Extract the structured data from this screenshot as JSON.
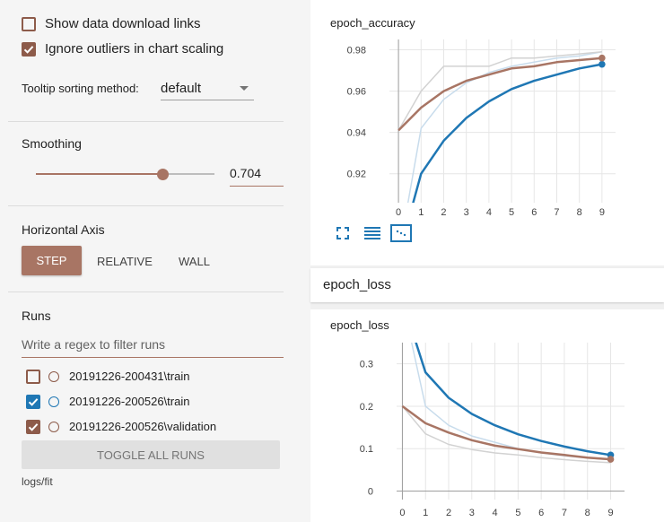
{
  "sidebar": {
    "show_download_links": {
      "label": "Show data download links",
      "checked": false
    },
    "ignore_outliers": {
      "label": "Ignore outliers in chart scaling",
      "checked": true
    },
    "tooltip": {
      "label": "Tooltip sorting method:",
      "value": "default"
    },
    "smoothing": {
      "label": "Smoothing",
      "value": "0.704",
      "level": 0.704
    },
    "horizontal_axis": {
      "label": "Horizontal Axis",
      "options": [
        "STEP",
        "RELATIVE",
        "WALL"
      ],
      "selected": "STEP"
    },
    "runs": {
      "label": "Runs",
      "filter_placeholder": "Write a regex to filter runs",
      "items": [
        {
          "name": "20191226-200431\\train",
          "checked": false,
          "color": "#8d5b4a"
        },
        {
          "name": "20191226-200526\\train",
          "checked": true,
          "color": "#1f77b4"
        },
        {
          "name": "20191226-200526\\validation",
          "checked": true,
          "color": "#8d5b4a"
        }
      ],
      "toggle_label": "TOGGLE ALL RUNS",
      "log_dir": "logs/fit"
    }
  },
  "colors": {
    "accent": "#a87564",
    "train_run": "#1f77b4",
    "validation_run": "#a87564",
    "raw_series": "#c8c8c8"
  },
  "icons": [
    "fullscreen-icon",
    "toggle-log-scale-icon",
    "fit-domain-icon"
  ],
  "main": {
    "accuracy_card_title": "epoch_accuracy",
    "loss_group_header": "epoch_loss",
    "loss_card_title": "epoch_loss"
  },
  "chart_data": [
    {
      "type": "line",
      "title": "epoch_accuracy",
      "x": [
        0,
        1,
        2,
        3,
        4,
        5,
        6,
        7,
        8,
        9
      ],
      "xlim": [
        -0.4,
        9.6
      ],
      "ylim": [
        0.906,
        0.985
      ],
      "y_ticks": [
        "0.92",
        "0.94",
        "0.96",
        "0.98"
      ],
      "x_ticks": [
        "0",
        "1",
        "2",
        "3",
        "4",
        "5",
        "6",
        "7",
        "8",
        "9"
      ],
      "grid": true,
      "series": [
        {
          "color": "#1f77b4",
          "kind": "smoothed",
          "values": [
            0.88,
            0.92,
            0.936,
            0.947,
            0.955,
            0.961,
            0.965,
            0.968,
            0.971,
            0.973
          ]
        },
        {
          "color": "#a87564",
          "kind": "smoothed",
          "values": [
            0.941,
            0.952,
            0.96,
            0.965,
            0.968,
            0.971,
            0.972,
            0.974,
            0.975,
            0.976
          ]
        },
        {
          "color": "#c8dcec",
          "kind": "raw",
          "values": [
            0.88,
            0.942,
            0.956,
            0.964,
            0.969,
            0.972,
            0.974,
            0.976,
            0.977,
            0.979
          ]
        },
        {
          "color": "#d2d2d2",
          "kind": "raw",
          "values": [
            0.941,
            0.96,
            0.972,
            0.972,
            0.972,
            0.976,
            0.976,
            0.977,
            0.978,
            0.979
          ]
        }
      ]
    },
    {
      "type": "line",
      "title": "epoch_loss",
      "x": [
        0,
        1,
        2,
        3,
        4,
        5,
        6,
        7,
        8,
        9
      ],
      "xlim": [
        -0.25,
        9.6
      ],
      "ylim": [
        -0.02,
        0.35
      ],
      "y_ticks": [
        "0",
        "0.1",
        "0.2",
        "0.3"
      ],
      "x_ticks": [
        "0",
        "1",
        "2",
        "3",
        "4",
        "5",
        "6",
        "7",
        "8",
        "9"
      ],
      "grid": true,
      "series": [
        {
          "color": "#1f77b4",
          "kind": "smoothed",
          "values": [
            0.45,
            0.28,
            0.22,
            0.182,
            0.155,
            0.134,
            0.118,
            0.105,
            0.094,
            0.085
          ]
        },
        {
          "color": "#a87564",
          "kind": "smoothed",
          "values": [
            0.2,
            0.16,
            0.138,
            0.12,
            0.107,
            0.099,
            0.091,
            0.085,
            0.079,
            0.075
          ]
        },
        {
          "color": "#c8dcec",
          "kind": "raw",
          "values": [
            0.45,
            0.2,
            0.155,
            0.13,
            0.115,
            0.1,
            0.09,
            0.083,
            0.078,
            0.074
          ]
        },
        {
          "color": "#d2d2d2",
          "kind": "raw",
          "values": [
            0.2,
            0.135,
            0.11,
            0.098,
            0.09,
            0.085,
            0.079,
            0.074,
            0.07,
            0.067
          ]
        }
      ]
    }
  ]
}
